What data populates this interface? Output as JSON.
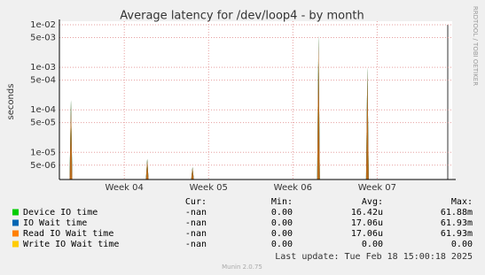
{
  "chart_data": {
    "type": "spike",
    "title": "Average latency for /dev/loop4 - by month",
    "ylabel": "seconds",
    "side_text": "RRDTOOL / TOBI OETIKER",
    "log_y": true,
    "grid": true,
    "ylim": [
      2.3e-06,
      0.0121
    ],
    "yticks": [
      {
        "value": 0.01,
        "label": "1e-02"
      },
      {
        "value": 0.005,
        "label": "5e-03"
      },
      {
        "value": 0.001,
        "label": "1e-03"
      },
      {
        "value": 0.0005,
        "label": "5e-04"
      },
      {
        "value": 0.0001,
        "label": "1e-04"
      },
      {
        "value": 5e-05,
        "label": "5e-05"
      },
      {
        "value": 1e-05,
        "label": "1e-05"
      },
      {
        "value": 5e-06,
        "label": "5e-06"
      }
    ],
    "xlim": [
      3.23,
      7.89
    ],
    "xticks": [
      {
        "value": 4,
        "label": "Week 04"
      },
      {
        "value": 5,
        "label": "Week 05"
      },
      {
        "value": 6,
        "label": "Week 06"
      },
      {
        "value": 7,
        "label": "Week 07"
      }
    ],
    "x": [
      3.367,
      4.272,
      4.809,
      6.304,
      6.884
    ],
    "series": [
      {
        "name": "Device IO time",
        "color": "#00cc00",
        "values": [
          0.00017,
          7e-06,
          4.5e-06,
          0.0055,
          0.001
        ]
      },
      {
        "name": "IO Wait time",
        "color": "#0066b3",
        "values": [
          0.00017,
          7e-06,
          4.5e-06,
          0.0055,
          0.001
        ]
      },
      {
        "name": "Read IO Wait time",
        "color": "#ff8000",
        "values": [
          0.00017,
          7e-06,
          4.5e-06,
          0.0055,
          0.001
        ]
      },
      {
        "name": "Write IO Wait time",
        "color": "#ffcc00",
        "values": [
          null,
          null,
          null,
          null,
          null
        ]
      }
    ],
    "legend": {
      "headers": [
        "Cur:",
        "Min:",
        "Avg:",
        "Max:"
      ],
      "rows": [
        [
          "-nan",
          "0.00",
          "16.42u",
          "61.88m"
        ],
        [
          "-nan",
          "0.00",
          "17.06u",
          "61.93m"
        ],
        [
          "-nan",
          "0.00",
          "17.06u",
          "61.93m"
        ],
        [
          "-nan",
          "0.00",
          "0.00",
          "0.00"
        ]
      ]
    },
    "last_update": "Last update:  Tue Feb 18 15:00:18 2025",
    "footer": "Munin 2.0.75"
  }
}
